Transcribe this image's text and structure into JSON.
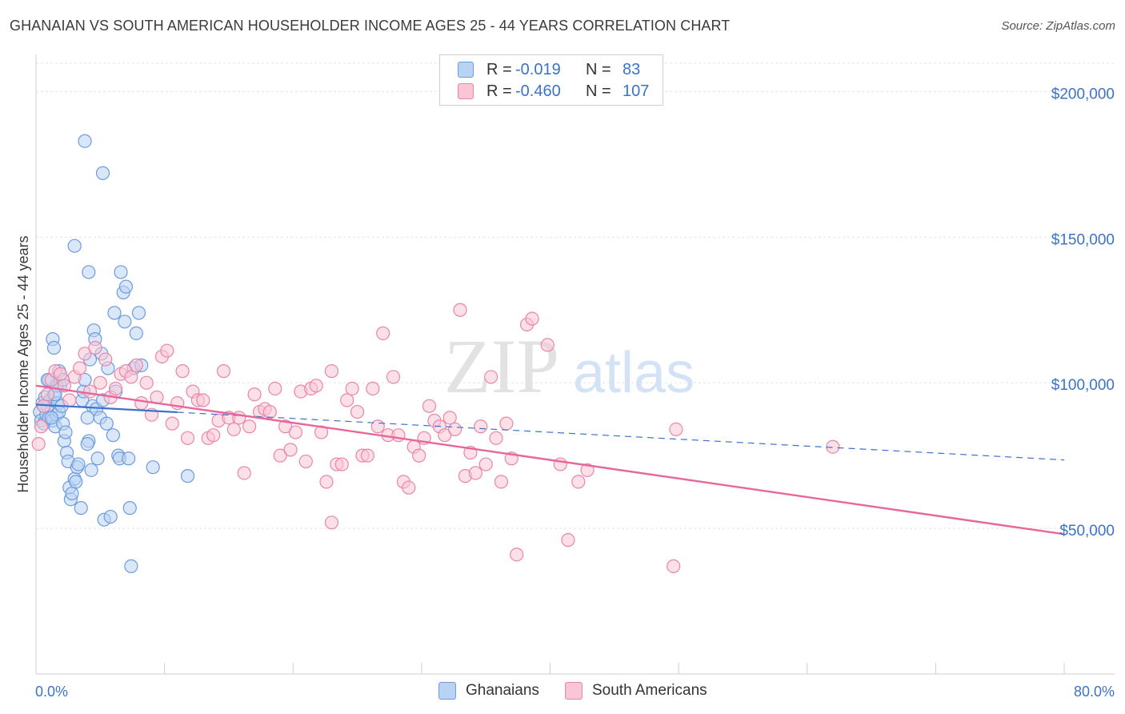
{
  "title": "GHANAIAN VS SOUTH AMERICAN HOUSEHOLDER INCOME AGES 25 - 44 YEARS CORRELATION CHART",
  "source": "Source: ZipAtlas.com",
  "watermark": {
    "zip": "ZIP",
    "atlas": "atlas"
  },
  "legend": {
    "rows": [
      {
        "r_label": "R =",
        "r_value": "-0.019",
        "n_label": "N =",
        "n_value": "83"
      },
      {
        "r_label": "R =",
        "r_value": "-0.460",
        "n_label": "N =",
        "n_value": "107"
      }
    ]
  },
  "bottom_legend": {
    "series1": "Ghanaians",
    "series2": "South Americans"
  },
  "colors": {
    "blue": "#3a73c9",
    "blue_fill": "#b9d3f3",
    "pink": "#e8679a",
    "pink_fill": "#f9c6d6"
  },
  "chart_data": {
    "type": "scatter",
    "title": "GHANAIAN VS SOUTH AMERICAN HOUSEHOLDER INCOME AGES 25 - 44 YEARS CORRELATION CHART",
    "xlabel": "",
    "ylabel": "Householder Income Ages 25 - 44 years",
    "xlim": [
      0,
      80
    ],
    "ylim": [
      0,
      210000
    ],
    "x_tick_labels": [
      "0.0%",
      "80.0%"
    ],
    "y_ticks": [
      50000,
      100000,
      150000,
      200000
    ],
    "y_tick_labels": [
      "$50,000",
      "$100,000",
      "$150,000",
      "$200,000"
    ],
    "series": [
      {
        "name": "Ghanaians",
        "color": "#3a73c9",
        "trend": {
          "x0": 0,
          "y0": 92500,
          "x1": 80,
          "y1": 73500,
          "solid_until_x": 11
        },
        "points": [
          [
            0.3,
            90000
          ],
          [
            0.4,
            87000
          ],
          [
            0.5,
            93000
          ],
          [
            0.6,
            86000
          ],
          [
            0.7,
            95000
          ],
          [
            0.8,
            89000
          ],
          [
            0.9,
            92000
          ],
          [
            1.0,
            88000
          ],
          [
            1.0,
            101000
          ],
          [
            1.1,
            94000
          ],
          [
            1.2,
            91000
          ],
          [
            1.3,
            87000
          ],
          [
            1.4,
            96000
          ],
          [
            1.5,
            85000
          ],
          [
            1.6,
            89000
          ],
          [
            1.7,
            93000
          ],
          [
            1.8,
            90000
          ],
          [
            1.9,
            99000
          ],
          [
            2.0,
            92000
          ],
          [
            2.1,
            86000
          ],
          [
            0.9,
            101000
          ],
          [
            1.3,
            115000
          ],
          [
            1.4,
            112000
          ],
          [
            1.6,
            99000
          ],
          [
            1.8,
            104000
          ],
          [
            2.2,
            80000
          ],
          [
            2.3,
            83000
          ],
          [
            2.4,
            76000
          ],
          [
            2.5,
            73000
          ],
          [
            2.6,
            64000
          ],
          [
            2.7,
            60000
          ],
          [
            2.8,
            62000
          ],
          [
            3.0,
            67000
          ],
          [
            3.1,
            66000
          ],
          [
            3.2,
            71000
          ],
          [
            3.3,
            72000
          ],
          [
            3.5,
            57000
          ],
          [
            3.6,
            94000
          ],
          [
            3.7,
            97000
          ],
          [
            3.8,
            101000
          ],
          [
            4.0,
            88000
          ],
          [
            4.1,
            80000
          ],
          [
            4.2,
            108000
          ],
          [
            4.4,
            92000
          ],
          [
            4.5,
            118000
          ],
          [
            4.6,
            115000
          ],
          [
            4.7,
            91000
          ],
          [
            4.8,
            74000
          ],
          [
            5.0,
            88000
          ],
          [
            5.1,
            110000
          ],
          [
            5.2,
            94000
          ],
          [
            5.3,
            53000
          ],
          [
            5.5,
            86000
          ],
          [
            5.6,
            105000
          ],
          [
            5.8,
            54000
          ],
          [
            6.0,
            82000
          ],
          [
            6.1,
            124000
          ],
          [
            6.2,
            97000
          ],
          [
            6.4,
            75000
          ],
          [
            6.5,
            74000
          ],
          [
            6.6,
            138000
          ],
          [
            6.8,
            131000
          ],
          [
            6.9,
            121000
          ],
          [
            7.0,
            133000
          ],
          [
            7.2,
            74000
          ],
          [
            7.3,
            57000
          ],
          [
            7.4,
            37000
          ],
          [
            7.6,
            105000
          ],
          [
            7.8,
            117000
          ],
          [
            8.0,
            124000
          ],
          [
            8.2,
            106000
          ],
          [
            3.8,
            183000
          ],
          [
            5.2,
            172000
          ],
          [
            3.0,
            147000
          ],
          [
            4.1,
            138000
          ],
          [
            2.1,
            101000
          ],
          [
            1.5,
            96000
          ],
          [
            4.0,
            79000
          ],
          [
            1.2,
            88000
          ],
          [
            0.6,
            92000
          ],
          [
            4.3,
            70000
          ],
          [
            9.1,
            71000
          ],
          [
            11.8,
            68000
          ]
        ]
      },
      {
        "name": "South Americans",
        "color": "#e8679a",
        "trend": {
          "x0": 0,
          "y0": 99000,
          "x1": 80,
          "y1": 48000
        },
        "points": [
          [
            0.2,
            79000
          ],
          [
            0.4,
            85000
          ],
          [
            0.6,
            92000
          ],
          [
            0.9,
            96000
          ],
          [
            1.2,
            101000
          ],
          [
            1.5,
            104000
          ],
          [
            1.9,
            103000
          ],
          [
            2.2,
            99000
          ],
          [
            2.6,
            94000
          ],
          [
            3.0,
            102000
          ],
          [
            3.4,
            105000
          ],
          [
            3.8,
            110000
          ],
          [
            4.2,
            97000
          ],
          [
            4.6,
            112000
          ],
          [
            5.0,
            100000
          ],
          [
            5.4,
            108000
          ],
          [
            5.8,
            95000
          ],
          [
            6.2,
            98000
          ],
          [
            6.6,
            103000
          ],
          [
            7.0,
            104000
          ],
          [
            7.4,
            102000
          ],
          [
            7.8,
            106000
          ],
          [
            8.2,
            93000
          ],
          [
            8.6,
            100000
          ],
          [
            9.0,
            89000
          ],
          [
            9.4,
            95000
          ],
          [
            9.8,
            109000
          ],
          [
            10.2,
            111000
          ],
          [
            10.6,
            86000
          ],
          [
            11.0,
            93000
          ],
          [
            11.4,
            104000
          ],
          [
            11.8,
            81000
          ],
          [
            12.2,
            97000
          ],
          [
            12.6,
            94000
          ],
          [
            13.0,
            94000
          ],
          [
            13.4,
            81000
          ],
          [
            13.8,
            82000
          ],
          [
            14.2,
            87000
          ],
          [
            14.6,
            104000
          ],
          [
            15.0,
            88000
          ],
          [
            15.4,
            84000
          ],
          [
            15.8,
            88000
          ],
          [
            16.2,
            69000
          ],
          [
            16.6,
            85000
          ],
          [
            17.0,
            96000
          ],
          [
            17.4,
            90000
          ],
          [
            17.8,
            91000
          ],
          [
            18.2,
            90000
          ],
          [
            18.6,
            98000
          ],
          [
            19.0,
            75000
          ],
          [
            19.4,
            85000
          ],
          [
            19.8,
            77000
          ],
          [
            20.2,
            83000
          ],
          [
            20.6,
            97000
          ],
          [
            21.0,
            73000
          ],
          [
            21.4,
            98000
          ],
          [
            21.8,
            99000
          ],
          [
            22.2,
            83000
          ],
          [
            22.6,
            66000
          ],
          [
            23.0,
            104000
          ],
          [
            23.4,
            72000
          ],
          [
            23.8,
            72000
          ],
          [
            24.2,
            94000
          ],
          [
            24.6,
            98000
          ],
          [
            25.0,
            90000
          ],
          [
            25.4,
            75000
          ],
          [
            25.8,
            75000
          ],
          [
            26.2,
            98000
          ],
          [
            26.6,
            85000
          ],
          [
            27.0,
            117000
          ],
          [
            27.4,
            82000
          ],
          [
            27.8,
            102000
          ],
          [
            28.2,
            82000
          ],
          [
            28.6,
            66000
          ],
          [
            29.0,
            64000
          ],
          [
            29.4,
            78000
          ],
          [
            29.8,
            75000
          ],
          [
            30.2,
            81000
          ],
          [
            30.6,
            92000
          ],
          [
            31.0,
            87000
          ],
          [
            31.4,
            85000
          ],
          [
            31.8,
            82000
          ],
          [
            32.2,
            88000
          ],
          [
            32.6,
            84000
          ],
          [
            33.0,
            125000
          ],
          [
            33.4,
            68000
          ],
          [
            33.8,
            76000
          ],
          [
            34.2,
            69000
          ],
          [
            34.6,
            85000
          ],
          [
            35.0,
            72000
          ],
          [
            35.4,
            102000
          ],
          [
            35.8,
            81000
          ],
          [
            36.2,
            66000
          ],
          [
            36.6,
            86000
          ],
          [
            37.0,
            74000
          ],
          [
            37.4,
            41000
          ],
          [
            38.2,
            120000
          ],
          [
            38.6,
            122000
          ],
          [
            39.8,
            113000
          ],
          [
            40.8,
            72000
          ],
          [
            41.4,
            46000
          ],
          [
            42.2,
            66000
          ],
          [
            42.9,
            70000
          ],
          [
            49.6,
            37000
          ],
          [
            49.8,
            84000
          ],
          [
            62.0,
            78000
          ],
          [
            23.0,
            52000
          ]
        ]
      }
    ]
  }
}
